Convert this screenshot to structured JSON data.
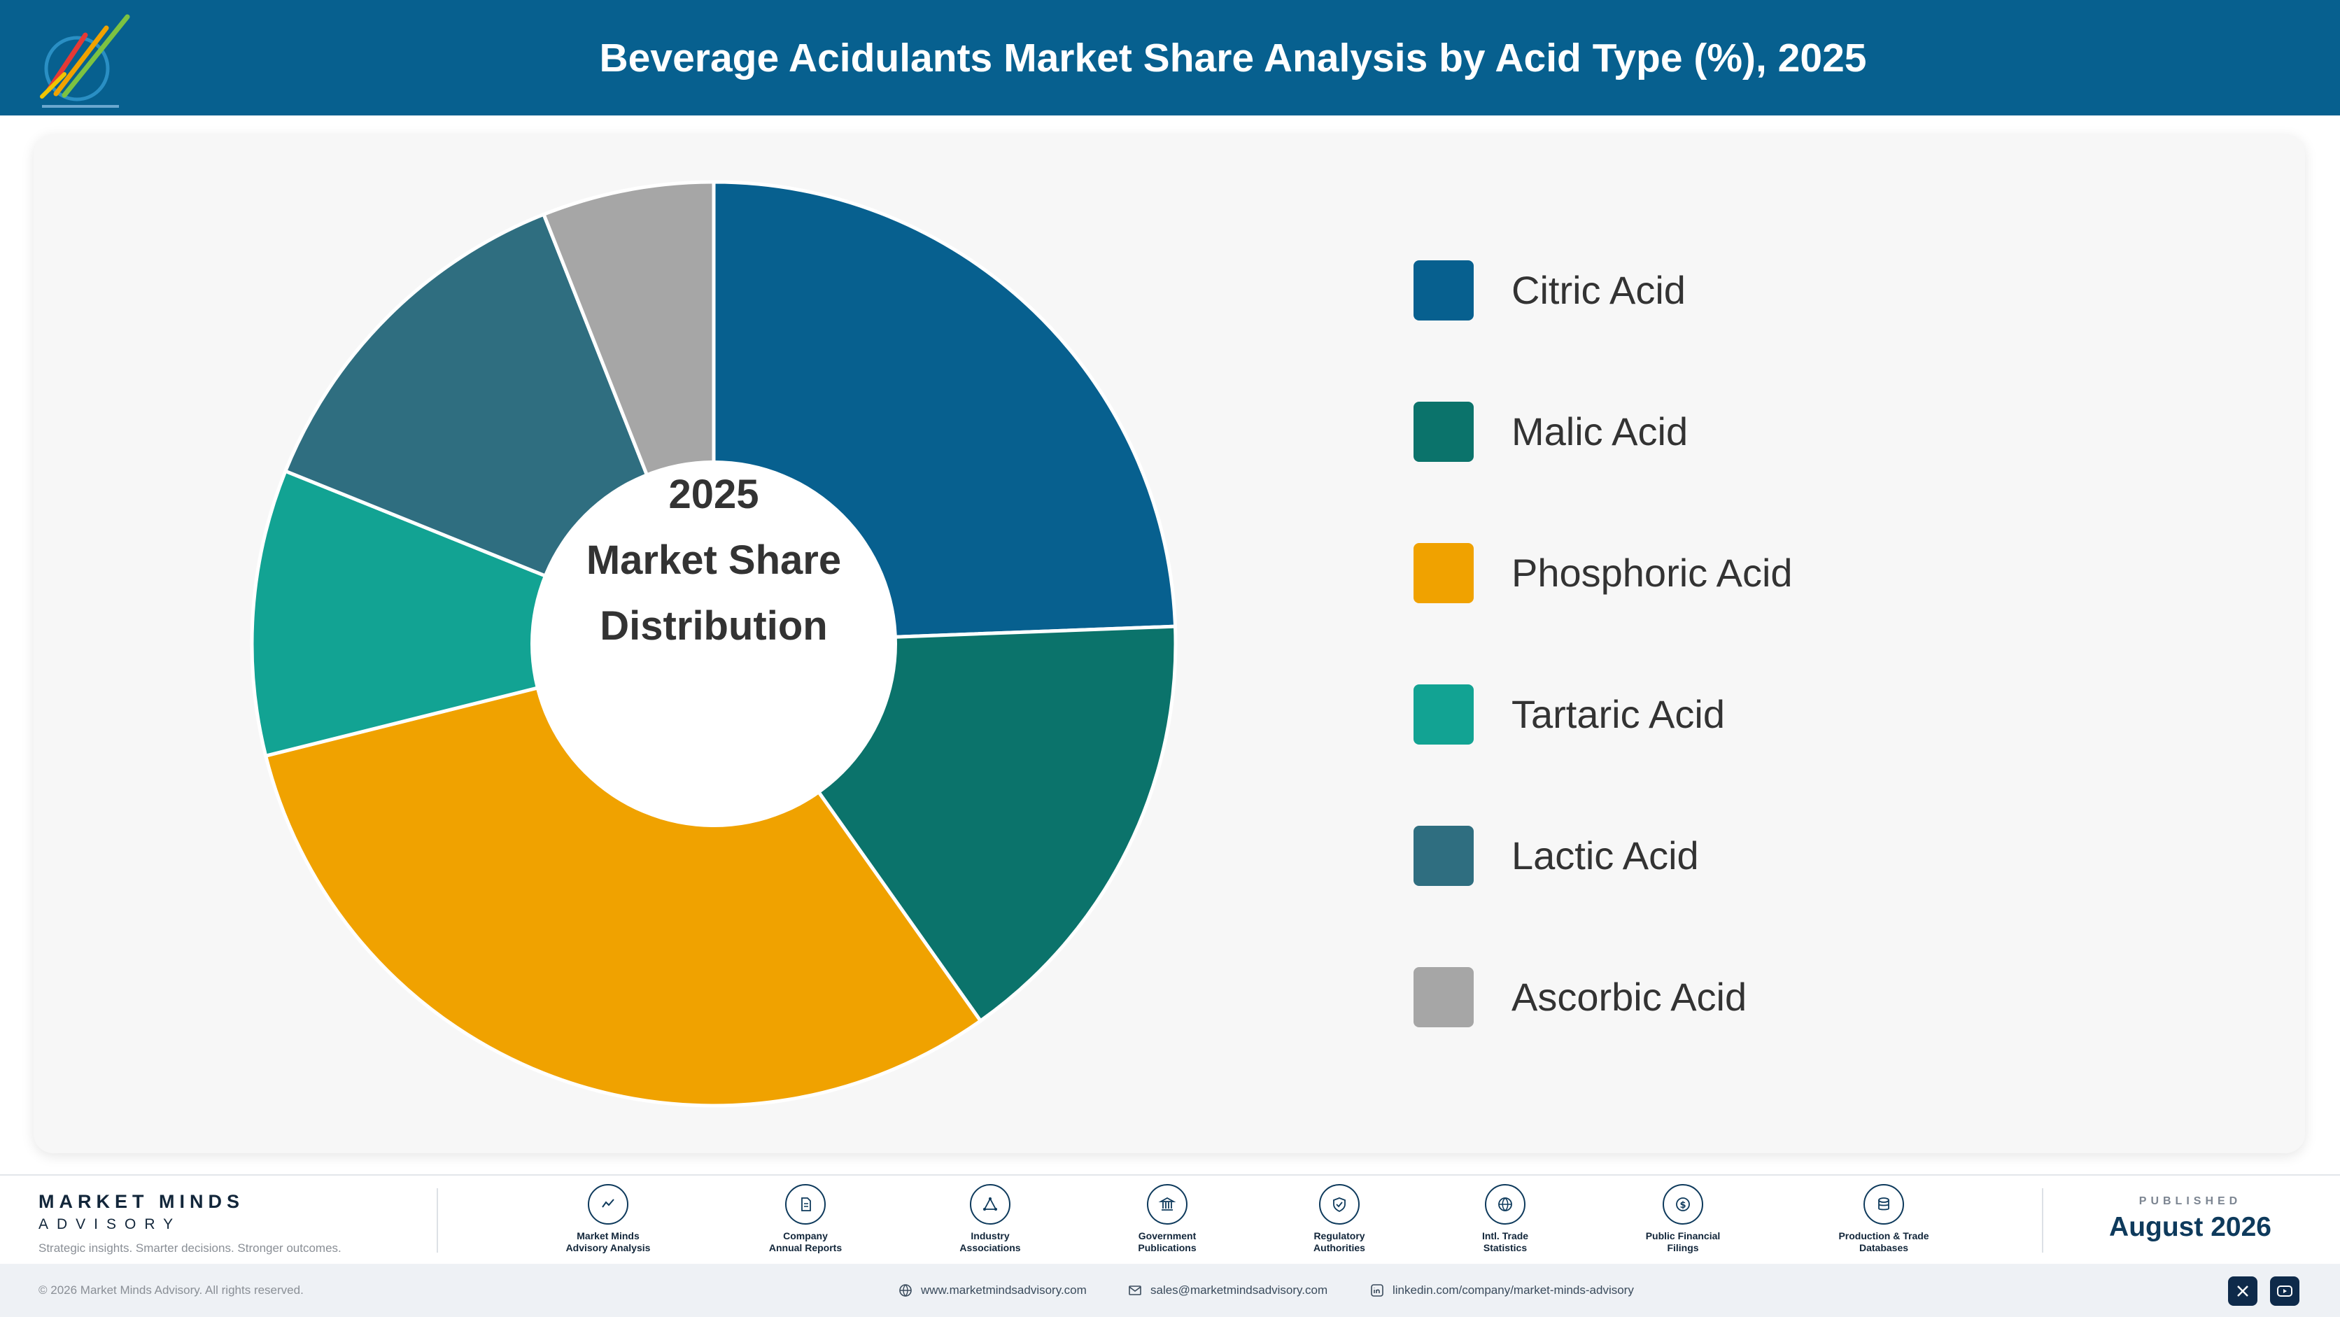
{
  "header": {
    "title": "Beverage Acidulants Market Share Analysis by Acid Type (%), 2025"
  },
  "chart_data": {
    "type": "pie",
    "style": "donut",
    "title": "Beverage Acidulants Market Share Analysis by Acid Type (%), 2025",
    "center_label": [
      "2025",
      "Market Share",
      "Distribution"
    ],
    "legend_position": "right",
    "categories": [
      "Citric Acid",
      "Malic Acid",
      "Phosphoric Acid",
      "Tartaric Acid",
      "Lactic Acid",
      "Ascorbic Acid"
    ],
    "values": [
      24.4,
      15.8,
      30.9,
      10.0,
      12.9,
      6.0
    ],
    "colors": [
      "#07608f",
      "#0b736b",
      "#f0a200",
      "#12a393",
      "#2f6e80",
      "#a6a6a6"
    ]
  },
  "footer": {
    "brand_name": "MARKET MINDS",
    "brand_sub": "ADVISORY",
    "brand_tagline": "Strategic insights. Smarter decisions. Stronger outcomes.",
    "sources": [
      {
        "line1": "Market Minds",
        "line2": "Advisory Analysis",
        "icon": "chart-line-icon"
      },
      {
        "line1": "Company",
        "line2": "Annual Reports",
        "icon": "document-icon"
      },
      {
        "line1": "Industry",
        "line2": "Associations",
        "icon": "network-icon"
      },
      {
        "line1": "Government",
        "line2": "Publications",
        "icon": "government-building-icon"
      },
      {
        "line1": "Regulatory",
        "line2": "Authorities",
        "icon": "shield-check-icon"
      },
      {
        "line1": "Intl. Trade",
        "line2": "Statistics",
        "icon": "globe-icon"
      },
      {
        "line1": "Public Financial",
        "line2": "Filings",
        "icon": "dollar-coin-icon"
      },
      {
        "line1": "Production & Trade",
        "line2": "Databases",
        "icon": "database-icon"
      }
    ],
    "published_label": "PUBLISHED",
    "published_date": "August 2026",
    "copyright": "© 2026 Market Minds Advisory. All rights reserved.",
    "website": "www.marketmindsadvisory.com",
    "email": "sales@marketmindsadvisory.com",
    "linkedin": "linkedin.com/company/market-minds-advisory"
  }
}
